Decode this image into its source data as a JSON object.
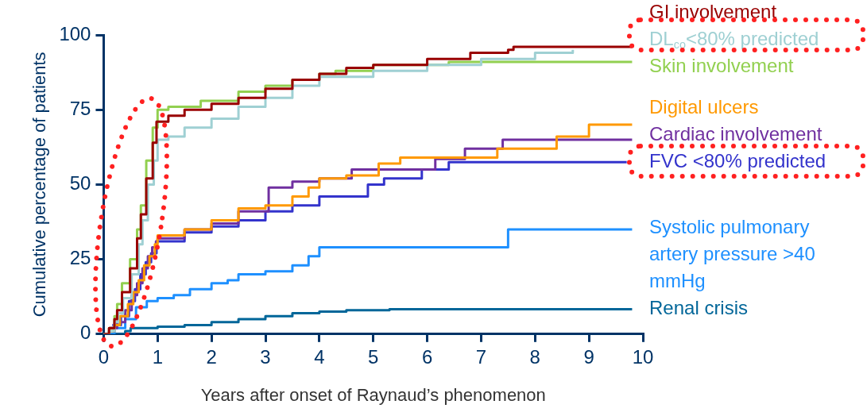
{
  "chart_data": {
    "type": "step",
    "xlabel": "Years after onset of Raynaud’s phenomenon",
    "ylabel": "Cumulative percentage of patients",
    "xlim": [
      0,
      10
    ],
    "xticks": [
      0,
      1,
      2,
      3,
      4,
      5,
      6,
      7,
      8,
      9,
      10
    ],
    "ylim": [
      0,
      100
    ],
    "yticks": [
      0,
      25,
      50,
      75,
      100
    ],
    "series": [
      {
        "name": "GI involvement",
        "color": "#990000",
        "x": [
          0,
          0.1,
          0.2,
          0.25,
          0.34,
          0.49,
          0.62,
          0.69,
          0.79,
          0.91,
          0.98,
          1.2,
          1.5,
          2,
          2.5,
          3,
          3.5,
          4,
          4.5,
          5,
          6,
          6.8,
          7.5,
          7.6,
          9.8
        ],
        "values": [
          0,
          2,
          5,
          8,
          14,
          22,
          32,
          40,
          52,
          64,
          71,
          73,
          75,
          77,
          79,
          82,
          85,
          87,
          89,
          90,
          92,
          94,
          95,
          96,
          96
        ]
      },
      {
        "name": "DL$_{co}$<80% predicted",
        "color": "#9fd0d3",
        "x": [
          0,
          0.1,
          0.2,
          0.27,
          0.36,
          0.52,
          0.65,
          0.72,
          0.82,
          0.93,
          1,
          1.2,
          1.5,
          2,
          2.5,
          3,
          3.5,
          4,
          5,
          6,
          7,
          8,
          8.7
        ],
        "values": [
          0,
          1,
          4,
          7,
          12,
          20,
          30,
          38,
          50,
          58,
          65,
          66,
          69,
          72,
          76,
          79,
          83,
          86,
          88,
          90,
          92,
          94,
          95
        ]
      },
      {
        "name": "Skin involvement",
        "color": "#92d050",
        "x": [
          0,
          0.1,
          0.2,
          0.25,
          0.34,
          0.49,
          0.62,
          0.69,
          0.79,
          0.91,
          1,
          1.2,
          1.8,
          2.5,
          3,
          3.5,
          4,
          4.3,
          5,
          6.4,
          9.8
        ],
        "values": [
          0,
          2,
          6,
          10,
          17,
          25,
          35,
          43,
          58,
          69,
          75,
          76,
          78,
          81,
          83,
          85,
          87,
          88,
          90,
          91,
          91
        ]
      },
      {
        "name": "Digital ulcers",
        "color": "#ff9900",
        "x": [
          0,
          0.1,
          0.2,
          0.3,
          0.45,
          0.55,
          0.65,
          0.75,
          0.85,
          0.95,
          1,
          1.5,
          2,
          2.5,
          3,
          3.5,
          3.8,
          4,
          4.5,
          5.1,
          5.5,
          7.3,
          8.4,
          9,
          9.8
        ],
        "values": [
          0,
          1,
          3,
          6,
          10,
          14,
          18,
          23,
          26,
          30,
          33,
          35,
          38,
          42,
          43,
          46,
          49,
          52,
          53,
          57,
          59,
          62,
          66,
          70,
          70
        ]
      },
      {
        "name": "Cardiac involvement",
        "color": "#7030a0",
        "x": [
          0.12,
          0.25,
          0.4,
          0.52,
          0.62,
          0.72,
          0.82,
          0.9,
          0.97,
          1,
          1.5,
          2,
          2.5,
          3.06,
          3.5,
          4,
          4.6,
          6.15,
          6.7,
          7.4,
          9.8
        ],
        "values": [
          2,
          4,
          8,
          13,
          17,
          22,
          26,
          29,
          31,
          32,
          35,
          37,
          41,
          49,
          51,
          52,
          55,
          58.5,
          62,
          65,
          65
        ]
      },
      {
        "name": "FVC <80% predicted",
        "color": "#3333cc",
        "x": [
          0.16,
          0.32,
          0.47,
          0.58,
          0.68,
          0.78,
          0.88,
          0.98,
          1.5,
          2,
          2.5,
          3,
          3.5,
          4,
          4.9,
          5.2,
          5.9,
          6.4,
          9.7
        ],
        "values": [
          3,
          6,
          11,
          15,
          20,
          24,
          27,
          31,
          34,
          36,
          38,
          41,
          43,
          46,
          50,
          52,
          55,
          57.5,
          57.5
        ]
      },
      {
        "name": "Systolic pulmonary artery pressure >40 mmHg",
        "color": "#1e90ff",
        "x": [
          0,
          0.2,
          0.4,
          0.6,
          0.8,
          1,
          1.3,
          1.6,
          2,
          2.3,
          2.5,
          3,
          3.5,
          3.8,
          4,
          7.5,
          9.8
        ],
        "values": [
          0,
          2,
          5,
          9,
          11,
          12,
          13,
          15,
          17,
          18,
          20,
          21,
          23,
          26,
          29,
          35,
          35
        ]
      },
      {
        "name": "Renal crisis",
        "color": "#006699",
        "x": [
          0,
          0.4,
          0.5,
          1,
          1.5,
          2,
          2.5,
          3,
          3.5,
          4,
          4.5,
          5.3,
          9.8
        ],
        "values": [
          0,
          1,
          2,
          2.5,
          3,
          4,
          5,
          6,
          7,
          7.5,
          8,
          8.3,
          8.3
        ]
      }
    ]
  }
}
